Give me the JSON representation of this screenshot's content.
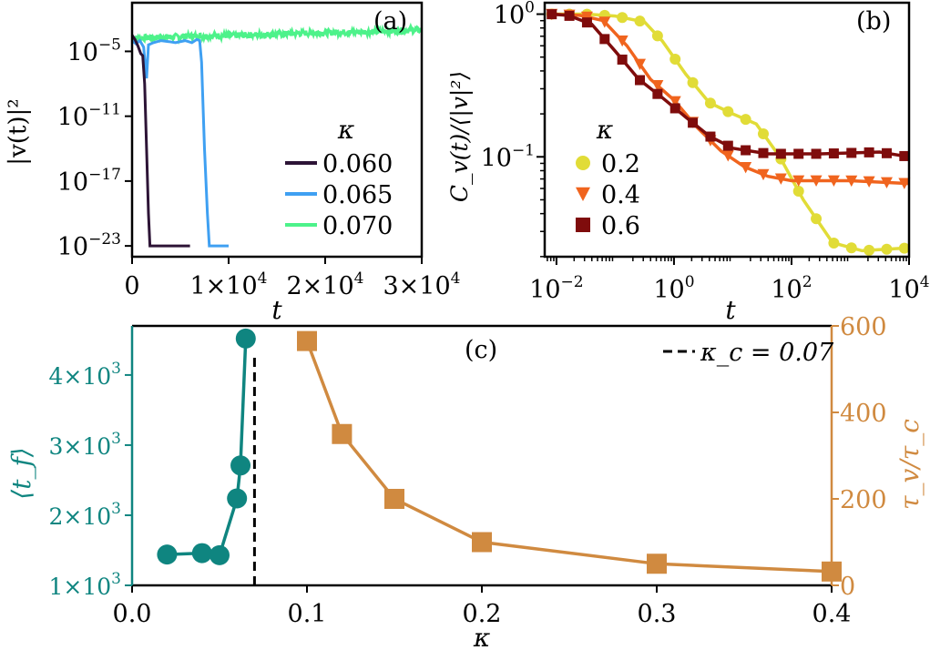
{
  "colors": {
    "k060": "#2d1436",
    "k065": "#3fa0f2",
    "k070": "#4df28a",
    "b02": "#e1dc37",
    "b04": "#f0641e",
    "b06": "#7f0c0c",
    "teal": "#0f8580",
    "orange": "#d08a40"
  },
  "chart_data": [
    {
      "panel": "(a)",
      "type": "line",
      "xlabel": "t",
      "ylabel": "|v(t)|²",
      "xlim": [
        0,
        30000
      ],
      "yscale": "log",
      "ylim_exp": [
        -24,
        -0.5
      ],
      "xticks": [
        {
          "v": 0,
          "text": "0"
        },
        {
          "v": 10000,
          "mant": "1×10",
          "exp": "4"
        },
        {
          "v": 20000,
          "mant": "2×10",
          "exp": "4"
        },
        {
          "v": 30000,
          "mant": "3×10",
          "exp": "4"
        }
      ],
      "yticks_exp": [
        -5,
        -11,
        -17,
        -23
      ],
      "legend": {
        "title": "κ",
        "entries": [
          "0.060",
          "0.065",
          "0.070"
        ]
      },
      "series": [
        {
          "name": "0.060",
          "color_key": "k060",
          "points": [
            [
              0,
              -3.5
            ],
            [
              300,
              -3.9
            ],
            [
              600,
              -4.5
            ],
            [
              900,
              -5.2
            ],
            [
              1100,
              -5.4
            ],
            [
              1300,
              -8
            ],
            [
              1500,
              -14
            ],
            [
              1700,
              -20
            ],
            [
              1850,
              -23
            ],
            [
              6000,
              -23
            ]
          ]
        },
        {
          "name": "0.065",
          "color_key": "k065",
          "points": [
            [
              0,
              -4.0
            ],
            [
              400,
              -4.3
            ],
            [
              800,
              -4.0
            ],
            [
              1200,
              -4.6
            ],
            [
              1500,
              -7.5
            ],
            [
              1700,
              -4.4
            ],
            [
              2200,
              -4.2
            ],
            [
              3000,
              -4.0
            ],
            [
              3800,
              -4.1
            ],
            [
              4500,
              -4.2
            ],
            [
              5500,
              -4.0
            ],
            [
              6200,
              -4.2
            ],
            [
              6700,
              -3.9
            ],
            [
              7000,
              -4.0
            ],
            [
              7200,
              -6
            ],
            [
              7500,
              -14
            ],
            [
              7800,
              -20
            ],
            [
              8000,
              -23
            ],
            [
              10000,
              -23
            ]
          ]
        },
        {
          "name": "0.070",
          "color_key": "k070",
          "noise": 0.55,
          "points": [
            [
              0,
              -3.8
            ],
            [
              6000,
              -3.6
            ],
            [
              12000,
              -3.5
            ],
            [
              18000,
              -3.3
            ],
            [
              24000,
              -3.2
            ],
            [
              30000,
              -3.0
            ]
          ]
        }
      ]
    },
    {
      "panel": "(b)",
      "type": "line",
      "xlabel": "t",
      "ylabel": "C_v(t)/⟨|v|²⟩",
      "xscale": "log",
      "yscale": "log",
      "xlim_exp": [
        -2.2,
        4
      ],
      "ylim_exp": [
        -1.7,
        0.08
      ],
      "xticks_exp": [
        -2,
        0,
        2,
        4
      ],
      "yticks": [
        {
          "exp": 0,
          "text": "10",
          "sup": "0"
        },
        {
          "exp": -1,
          "text": "10",
          "sup": "−1"
        }
      ],
      "legend": {
        "title": "κ",
        "entries": [
          "0.2",
          "0.4",
          "0.6"
        ]
      },
      "series": [
        {
          "name": "0.2",
          "color_key": "b02",
          "marker": "circle",
          "points": [
            [
              -2.1,
              1.0
            ],
            [
              -1.5,
              1.0
            ],
            [
              -1.0,
              0.97
            ],
            [
              -0.5,
              0.88
            ],
            [
              -0.2,
              0.65
            ],
            [
              0.2,
              0.38
            ],
            [
              0.6,
              0.24
            ],
            [
              1.0,
              0.2
            ],
            [
              1.4,
              0.17
            ],
            [
              1.8,
              0.1
            ],
            [
              2.2,
              0.05
            ],
            [
              2.7,
              0.025
            ],
            [
              3.2,
              0.022
            ],
            [
              4.0,
              0.023
            ]
          ]
        },
        {
          "name": "0.4",
          "color_key": "b04",
          "marker": "triangle",
          "points": [
            [
              -2.1,
              1.0
            ],
            [
              -1.6,
              0.98
            ],
            [
              -1.2,
              0.9
            ],
            [
              -0.8,
              0.6
            ],
            [
              -0.4,
              0.35
            ],
            [
              0.0,
              0.25
            ],
            [
              0.4,
              0.16
            ],
            [
              0.8,
              0.11
            ],
            [
              1.2,
              0.085
            ],
            [
              1.6,
              0.073
            ],
            [
              2.0,
              0.068
            ],
            [
              3.0,
              0.068
            ],
            [
              4.0,
              0.065
            ]
          ]
        },
        {
          "name": "0.6",
          "color_key": "b06",
          "marker": "square",
          "points": [
            [
              -2.1,
              1.0
            ],
            [
              -1.8,
              0.98
            ],
            [
              -1.4,
              0.85
            ],
            [
              -1.0,
              0.55
            ],
            [
              -0.6,
              0.35
            ],
            [
              -0.2,
              0.26
            ],
            [
              0.2,
              0.19
            ],
            [
              0.6,
              0.14
            ],
            [
              1.0,
              0.115
            ],
            [
              1.6,
              0.105
            ],
            [
              2.5,
              0.105
            ],
            [
              3.5,
              0.108
            ],
            [
              4.0,
              0.1
            ]
          ]
        }
      ]
    },
    {
      "panel": "(c)",
      "type": "scatter",
      "xlabel": "κ",
      "xlim": [
        0,
        0.4
      ],
      "xticks": [
        "0.0",
        "0.1",
        "0.2",
        "0.3",
        "0.4"
      ],
      "left_ylabel": "⟨t_f⟩",
      "left_ylim": [
        1000,
        4700
      ],
      "left_yticks": [
        {
          "v": 1000,
          "mant": "1×10",
          "exp": "3"
        },
        {
          "v": 2000,
          "mant": "2×10",
          "exp": "3"
        },
        {
          "v": 3000,
          "mant": "3×10",
          "exp": "3"
        },
        {
          "v": 4000,
          "mant": "4×10",
          "exp": "3"
        }
      ],
      "right_ylabel": "τ_v/τ_c",
      "right_ylim": [
        0,
        600
      ],
      "right_yticks": [
        "0",
        "200",
        "400",
        "600"
      ],
      "vline": {
        "x": 0.07,
        "label": "κ_c = 0.07"
      },
      "series": [
        {
          "name": "⟨t_f⟩",
          "axis": "left",
          "color_key": "teal",
          "marker": "circle",
          "x": [
            0.02,
            0.04,
            0.05,
            0.06,
            0.062,
            0.065
          ],
          "y": [
            1440,
            1460,
            1430,
            2240,
            2710,
            4520
          ]
        },
        {
          "name": "τ_v/τ_c",
          "axis": "right",
          "color_key": "orange",
          "marker": "square",
          "x": [
            0.1,
            0.12,
            0.15,
            0.2,
            0.3,
            0.4
          ],
          "y": [
            565,
            350,
            200,
            100,
            50,
            32
          ]
        }
      ]
    }
  ]
}
